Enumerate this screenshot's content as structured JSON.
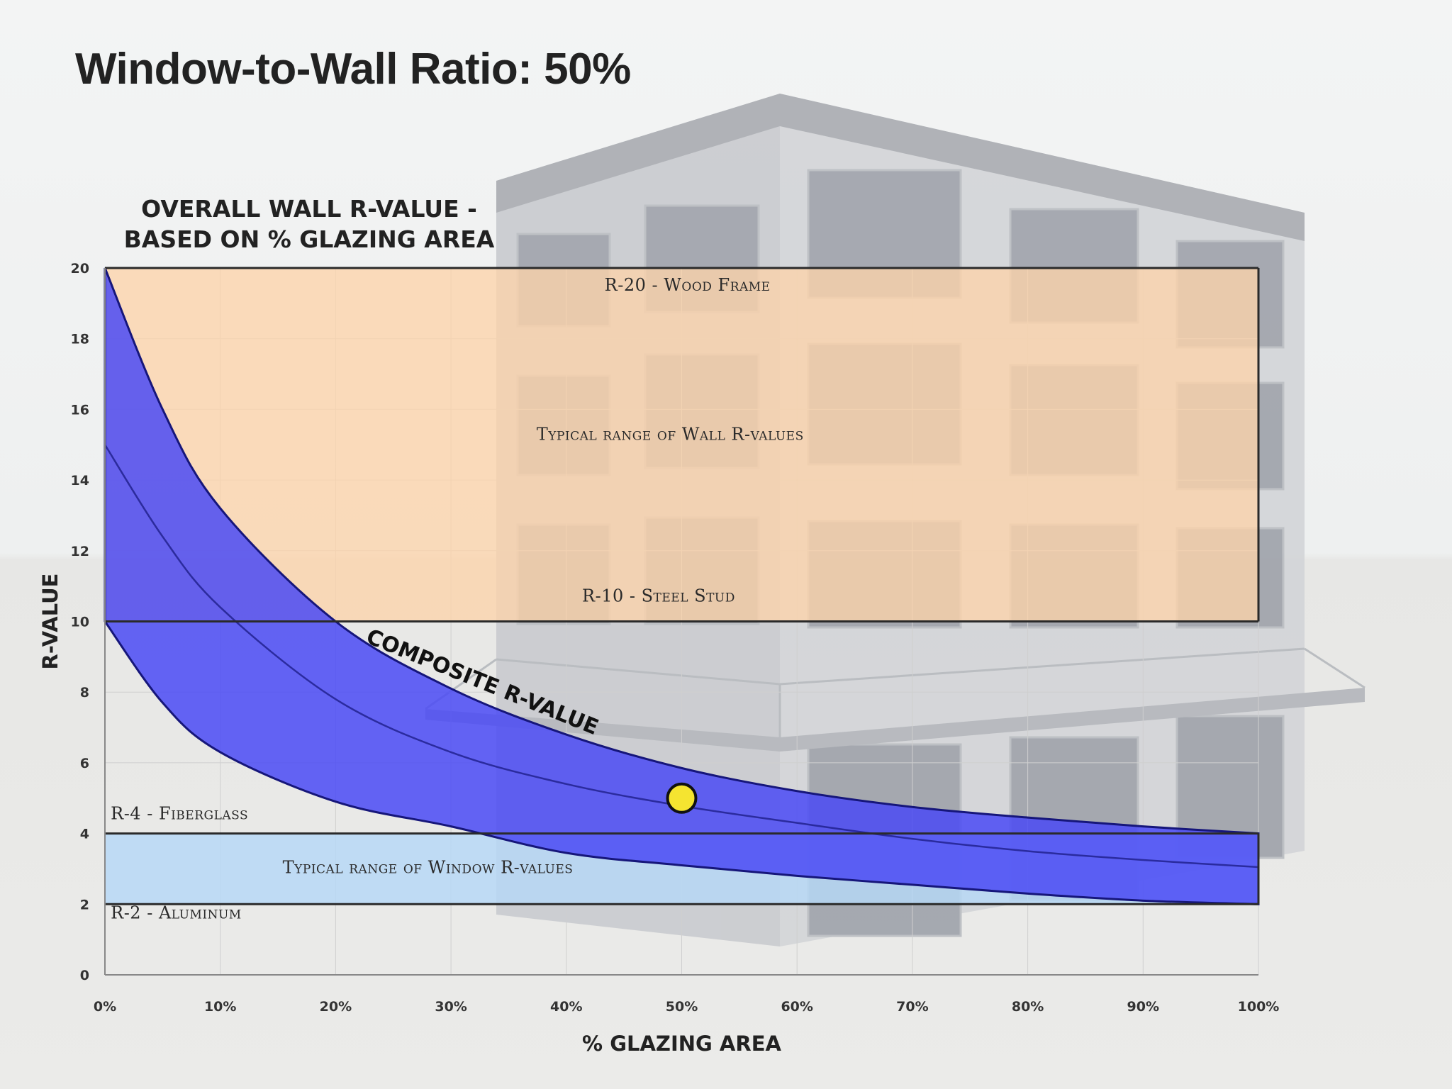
{
  "slide": {
    "title": "Window-to-Wall Ratio: 50%"
  },
  "colors": {
    "wall_band": "#fcd3ab",
    "window_band": "#b6d8f7",
    "composite_band": "#4a4af5",
    "marker": "#f5e430"
  },
  "chart_data": {
    "type": "area",
    "title": [
      "OVERALL WALL R-VALUE -",
      "BASED ON % GLAZING AREA"
    ],
    "xlabel": "% GLAZING AREA",
    "ylabel": "R-VALUE",
    "xlim": [
      0,
      100
    ],
    "ylim": [
      0,
      20
    ],
    "x_ticks": [
      0,
      10,
      20,
      30,
      40,
      50,
      60,
      70,
      80,
      90,
      100
    ],
    "x_tick_labels": [
      "0%",
      "10%",
      "20%",
      "30%",
      "40%",
      "50%",
      "60%",
      "70%",
      "80%",
      "90%",
      "100%"
    ],
    "y_ticks": [
      0,
      2,
      4,
      6,
      8,
      10,
      12,
      14,
      16,
      18,
      20
    ],
    "y_tick_labels": [
      "0",
      "2",
      "4",
      "6",
      "8",
      "10",
      "12",
      "14",
      "16",
      "18",
      "20"
    ],
    "bands": [
      {
        "label": "Typical range of Wall R-values",
        "y_min": 10,
        "y_max": 20,
        "color": "#fcd3ab"
      },
      {
        "label": "Typical range of Window R-values",
        "y_min": 2,
        "y_max": 4,
        "color": "#b6d8f7"
      }
    ],
    "reference_lines": [
      {
        "label": "R-20 - Wood Frame",
        "y": 20
      },
      {
        "label": "R-10 - Steel Stud",
        "y": 10
      },
      {
        "label": "R-4 - Fiberglass",
        "y": 4
      },
      {
        "label": "R-2 - Aluminum",
        "y": 2
      }
    ],
    "composite_band_label": "COMPOSITE R-VALUE",
    "composite": {
      "x": [
        0,
        5,
        10,
        20,
        30,
        40,
        50,
        60,
        70,
        80,
        90,
        100
      ],
      "upper": [
        20,
        16,
        13.2,
        10.0,
        8.1,
        6.8,
        5.85,
        5.2,
        4.75,
        4.45,
        4.2,
        4.0
      ],
      "middle": [
        15,
        12.4,
        10.4,
        7.8,
        6.3,
        5.4,
        4.78,
        4.3,
        3.85,
        3.5,
        3.25,
        3.05
      ],
      "lower": [
        10,
        7.7,
        6.3,
        4.9,
        4.2,
        3.45,
        3.1,
        2.8,
        2.55,
        2.3,
        2.1,
        2.0
      ]
    },
    "marker": {
      "x": 50,
      "y": 5.0
    },
    "grid": true
  }
}
